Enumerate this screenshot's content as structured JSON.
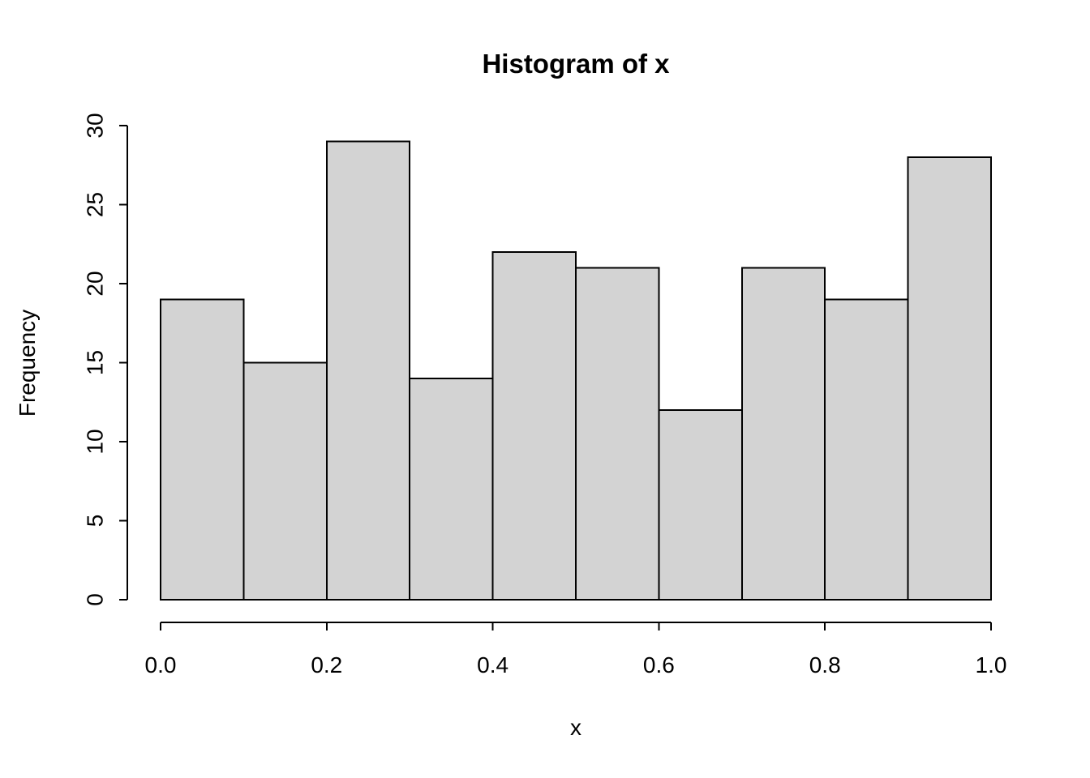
{
  "chart_data": {
    "type": "bar",
    "chart_kind": "histogram",
    "title": "Histogram of x",
    "xlabel": "x",
    "ylabel": "Frequency",
    "bin_edges": [
      0.0,
      0.1,
      0.2,
      0.3,
      0.4,
      0.5,
      0.6,
      0.7,
      0.8,
      0.9,
      1.0
    ],
    "values": [
      19,
      15,
      29,
      14,
      22,
      21,
      12,
      21,
      19,
      28
    ],
    "xlim": [
      0.0,
      1.0
    ],
    "ylim": [
      0,
      30
    ],
    "x_tick_values": [
      0.0,
      0.2,
      0.4,
      0.6,
      0.8,
      1.0
    ],
    "x_tick_labels": [
      "0.0",
      "0.2",
      "0.4",
      "0.6",
      "0.8",
      "1.0"
    ],
    "y_tick_values": [
      0,
      5,
      10,
      15,
      20,
      25,
      30
    ],
    "y_tick_labels": [
      "0",
      "5",
      "10",
      "15",
      "20",
      "25",
      "30"
    ],
    "bar_fill": "#d3d3d3",
    "bar_stroke": "#000000",
    "axis_color": "#000000",
    "background": "#ffffff",
    "grid": false,
    "legend": false
  }
}
